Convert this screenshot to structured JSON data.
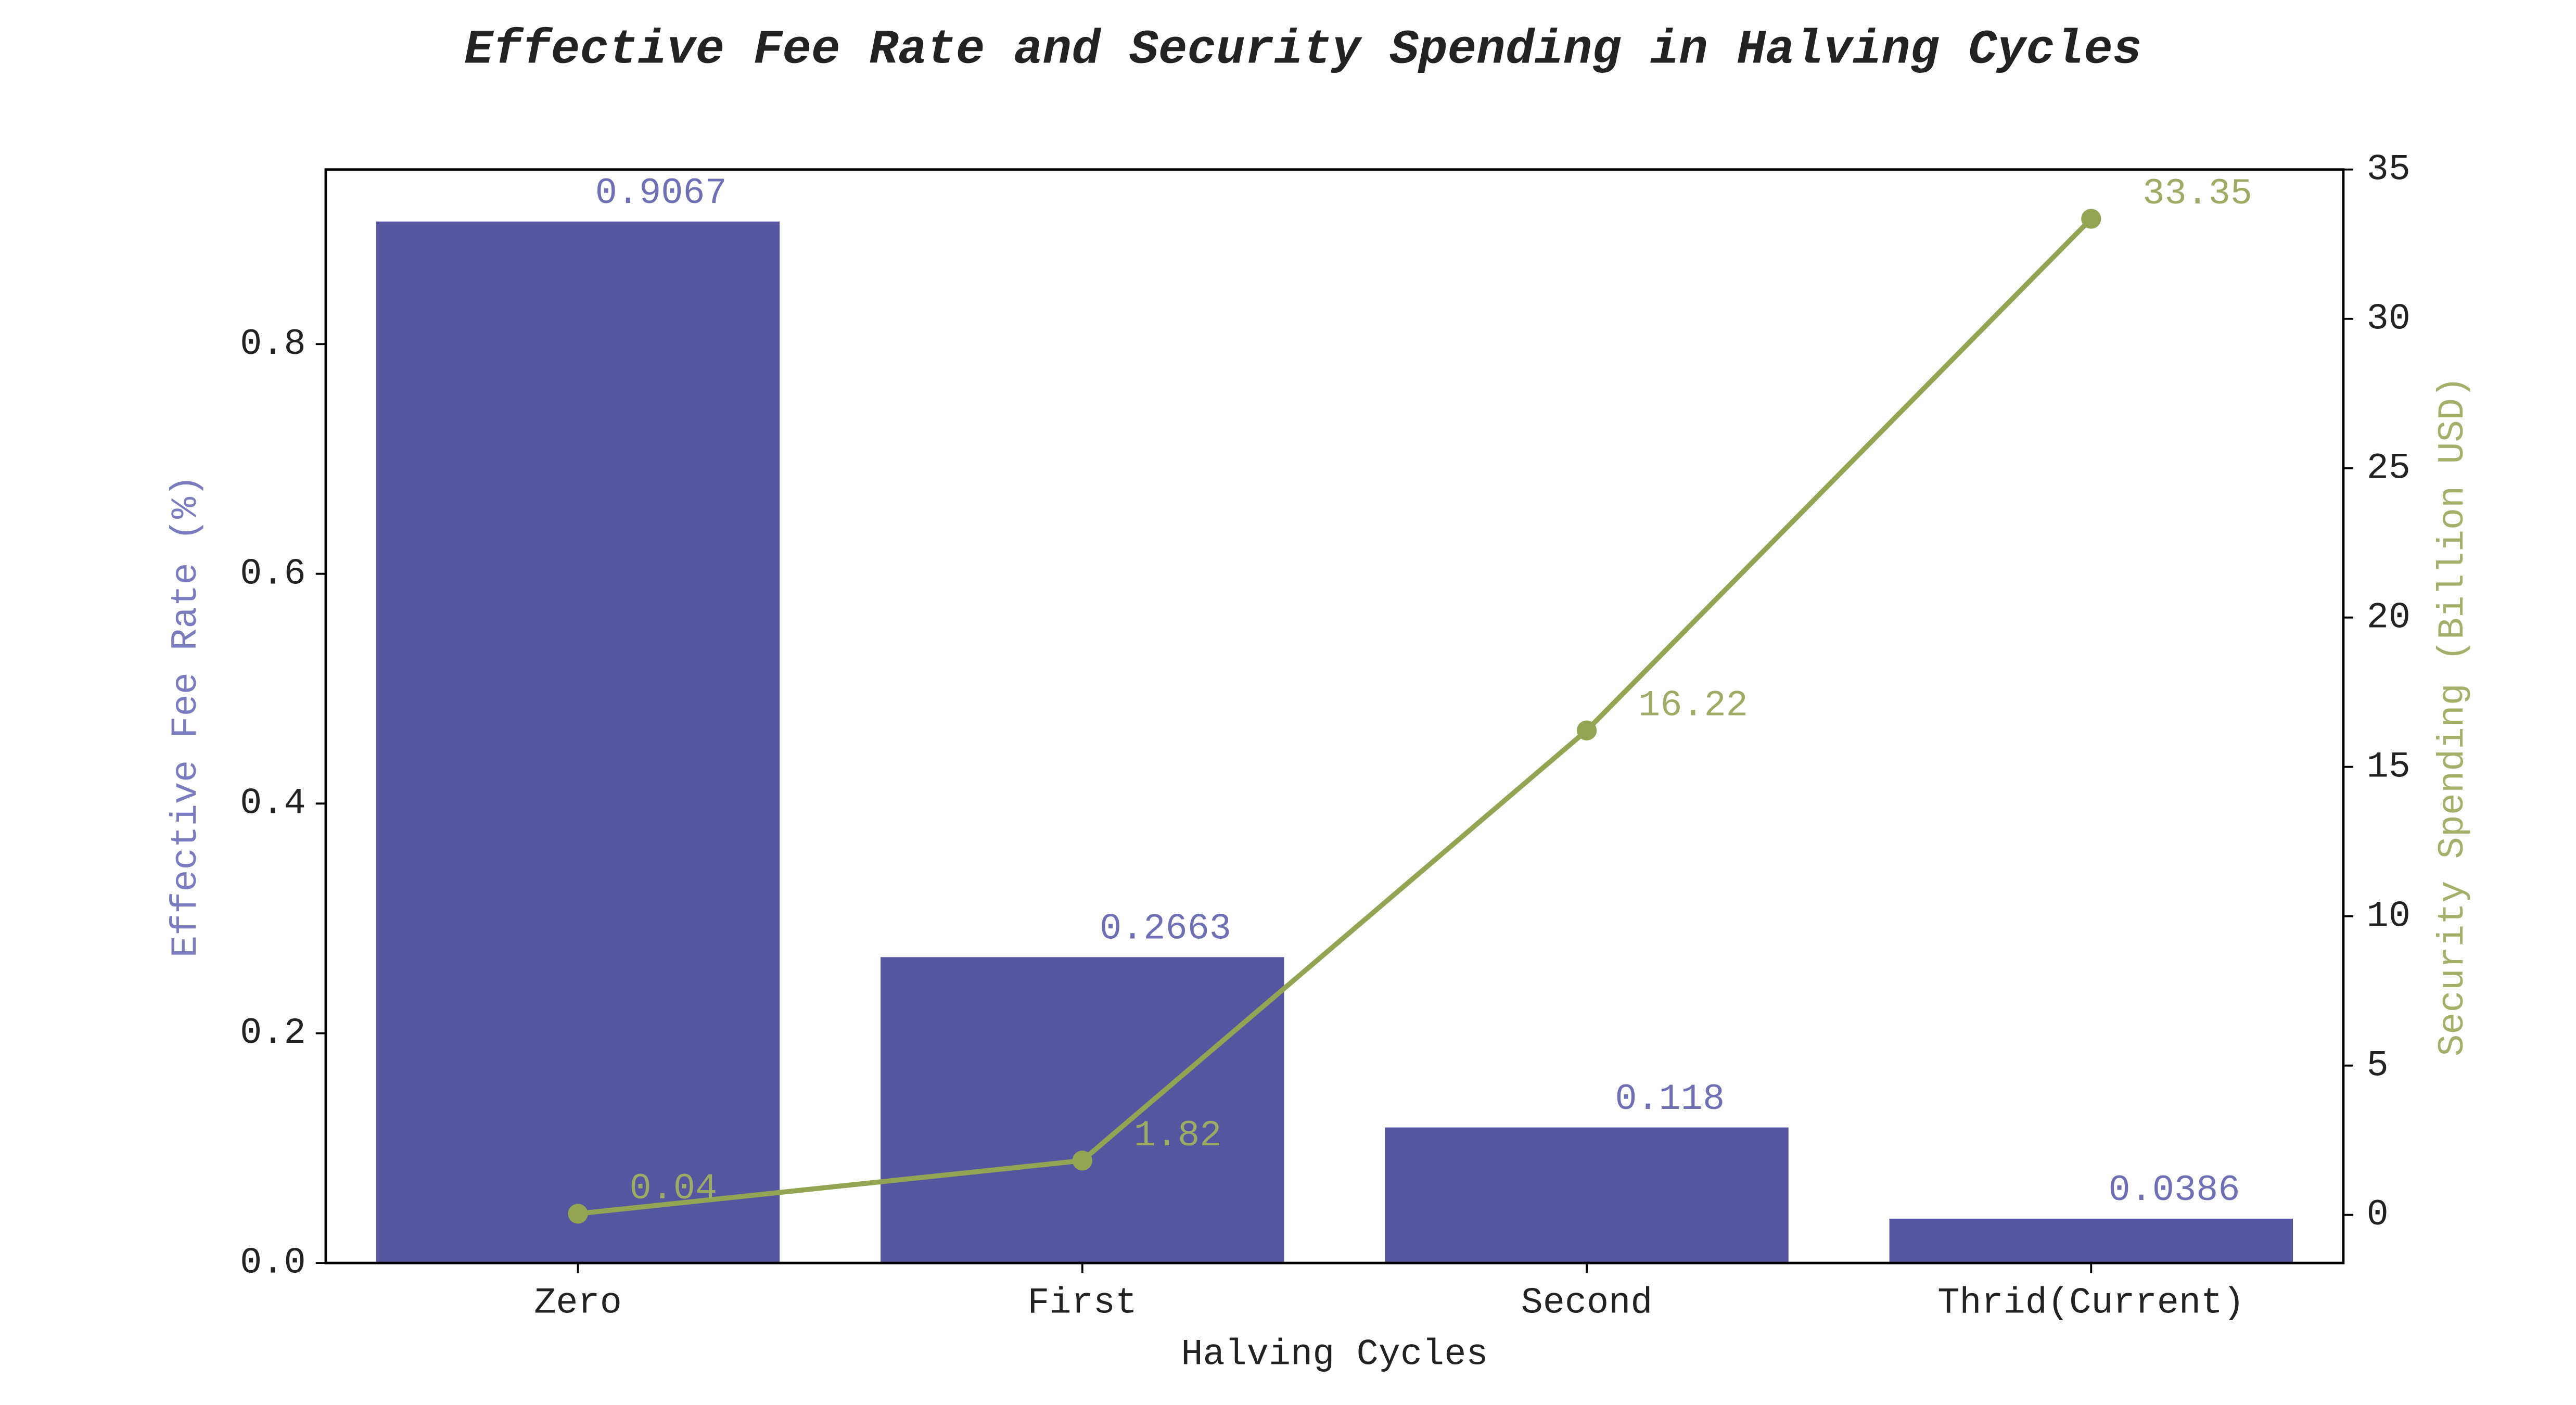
{
  "chart_data": {
    "type": "bar",
    "title": "Effective Fee Rate and Security Spending in Halving Cycles",
    "x_label": "Halving Cycles",
    "y_label": "Effective Fee Rate (%)",
    "y2_label": "Security Spending (Billion USD)",
    "categories": [
      "Zero",
      "First",
      "Second",
      "Thrid(Current)"
    ],
    "series": [
      {
        "color": "#5555a0",
        "label_color": "#6f6fb5",
        "values": [
          0.9067,
          0.2663,
          0.118,
          0.0386
        ]
      },
      {
        "color": "#93a553",
        "label_color": "#9dab64",
        "axis": "y2",
        "values": [
          0.04,
          1.82,
          16.22,
          33.35
        ]
      }
    ],
    "ylim": [
      0,
      0.952
    ],
    "yticks": [
      {
        "value": 0,
        "label": "0.0"
      },
      0.2,
      0.4,
      0.6,
      0.8
    ],
    "y2lim": [
      -1.61,
      35
    ],
    "y2ticks": [
      0,
      5,
      10,
      15,
      20,
      25,
      30,
      35
    ],
    "y_label_color": "#7b7bbf",
    "y2_label_color": "#a3b06a"
  }
}
